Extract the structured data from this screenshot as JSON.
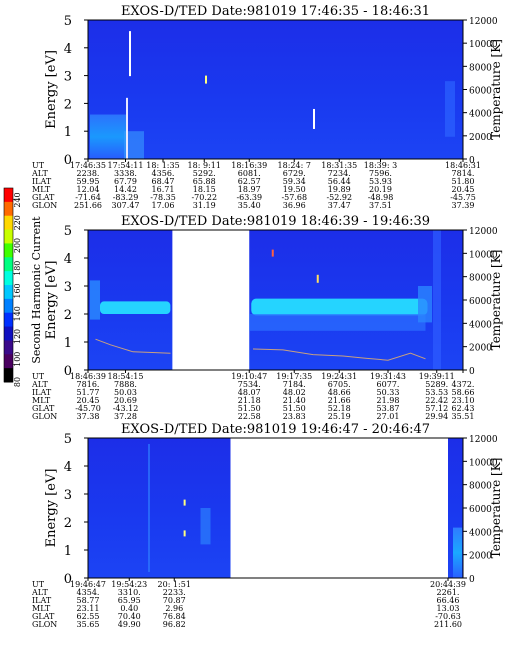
{
  "colorbar": {
    "label": "Second Harmonic Current",
    "ticks": [
      "240",
      "220",
      "200",
      "180",
      "160",
      "140",
      "120",
      "100",
      "80"
    ],
    "colors": [
      "#ff0000",
      "#ff6a00",
      "#ffd800",
      "#c8ff00",
      "#40ff00",
      "#00ff80",
      "#00ffe0",
      "#00c8ff",
      "#0080ff",
      "#0030ff",
      "#1010c0",
      "#3a0a8a",
      "#4a0060",
      "#000000"
    ]
  },
  "chart_data": [
    {
      "type": "heatmap",
      "title": "EXOS-D/TED   Date:981019   17:46:35 - 18:46:31",
      "ylabel": "Energy [eV]",
      "y2label": "Temperature [K]",
      "ylim": [
        0,
        5
      ],
      "yticks": [
        "0",
        "1",
        "2",
        "3",
        "4",
        "5"
      ],
      "y2lim": [
        0,
        12000
      ],
      "y2ticks": [
        "0",
        "2000",
        "4000",
        "6000",
        "8000",
        "10000",
        "12000"
      ],
      "gap": null,
      "row_labels": [
        "UT",
        "ALT",
        "ILAT",
        "MLT",
        "GLAT",
        "GLON"
      ],
      "columns": [
        [
          "17:46:35",
          "2238.",
          "59.95",
          "12.04",
          "-71.64",
          "251.66"
        ],
        [
          "17:54:11",
          "3338.",
          "67.79",
          "14.42",
          "-83.29",
          "307.47"
        ],
        [
          "18: 1:35",
          "4356.",
          "68.47",
          "16.71",
          "-78.35",
          "17.06"
        ],
        [
          "18: 9:11",
          "5292.",
          "65.88",
          "18.15",
          "-70.22",
          "31.19"
        ],
        [
          "18:16:39",
          "6081.",
          "62.57",
          "18.97",
          "-63.39",
          "35.40"
        ],
        [
          "18:24: 7",
          "6729.",
          "59.34",
          "19.50",
          "-57.68",
          "36.96"
        ],
        [
          "18:31:35",
          "7234.",
          "56.44",
          "19.89",
          "-52.92",
          "37.47"
        ],
        [
          "18:39: 3",
          "7596.",
          "53.93",
          "20.19",
          "-48.98",
          "37.51"
        ],
        [
          "18:46:31",
          "7814.",
          "51.80",
          "20.45",
          "-45.75",
          "37.39"
        ]
      ]
    },
    {
      "type": "heatmap",
      "title": "EXOS-D/TED   Date:981019   18:46:39 - 19:46:39",
      "ylabel": "Energy [eV]",
      "y2label": "Temperature [K]",
      "ylim": [
        0,
        5
      ],
      "yticks": [
        "0",
        "1",
        "2",
        "3",
        "4",
        "5"
      ],
      "y2lim": [
        0,
        12000
      ],
      "y2ticks": [
        "0",
        "2000",
        "4000",
        "6000",
        "8000",
        "10000",
        "12000"
      ],
      "gap": [
        0.225,
        0.43
      ],
      "row_labels": [
        "UT",
        "ALT",
        "ILAT",
        "MLT",
        "GLAT",
        "GLON"
      ],
      "columns": [
        [
          "18:46:39",
          "7816.",
          "51.77",
          "20.45",
          "-45.70",
          "37.38"
        ],
        [
          "18:54:15",
          "7888.",
          "50.03",
          "20.69",
          "-43.12",
          "37.28"
        ],
        [
          "19:10:47",
          "7534.",
          "48.07",
          "21.18",
          "51.50",
          "22.58"
        ],
        [
          "19:17:35",
          "7184.",
          "48.02",
          "21.40",
          "51.50",
          "23.83"
        ],
        [
          "19:24:31",
          "6705.",
          "48.66",
          "21.66",
          "52.18",
          "25.19"
        ],
        [
          "19:31:43",
          "6077.",
          "50.33",
          "21.98",
          "53.87",
          "27.01"
        ],
        [
          "19:39:11",
          "5289.",
          "53.53",
          "22.42",
          "57.12",
          "29.94"
        ],
        [
          "",
          "4372.",
          "58.66",
          "23.10",
          "62.43",
          "35.51"
        ]
      ]
    },
    {
      "type": "heatmap",
      "title": "EXOS-D/TED   Date:981019   19:46:47 - 20:46:47",
      "ylabel": "Energy [eV]",
      "y2label": "Temperature [K]",
      "ylim": [
        0,
        5
      ],
      "yticks": [
        "0",
        "1",
        "2",
        "3",
        "4",
        "5"
      ],
      "y2lim": [
        0,
        12000
      ],
      "y2ticks": [
        "0",
        "2000",
        "4000",
        "6000",
        "8000",
        "10000",
        "12000"
      ],
      "gap": [
        0.38,
        0.96
      ],
      "row_labels": [
        "UT",
        "ALT",
        "ILAT",
        "MLT",
        "GLAT",
        "GLON"
      ],
      "columns": [
        [
          "19:46:47",
          "4354.",
          "58.77",
          "23.11",
          "62.55",
          "35.65"
        ],
        [
          "19:54:23",
          "3310.",
          "65.95",
          "0.40",
          "70.40",
          "49.90"
        ],
        [
          "20: 1:51",
          "2233.",
          "70.87",
          "2.96",
          "76.84",
          "96.82"
        ],
        [
          "20:44:39",
          "2261.",
          "66.46",
          "13.03",
          "-70.63",
          "211.60"
        ]
      ]
    }
  ]
}
